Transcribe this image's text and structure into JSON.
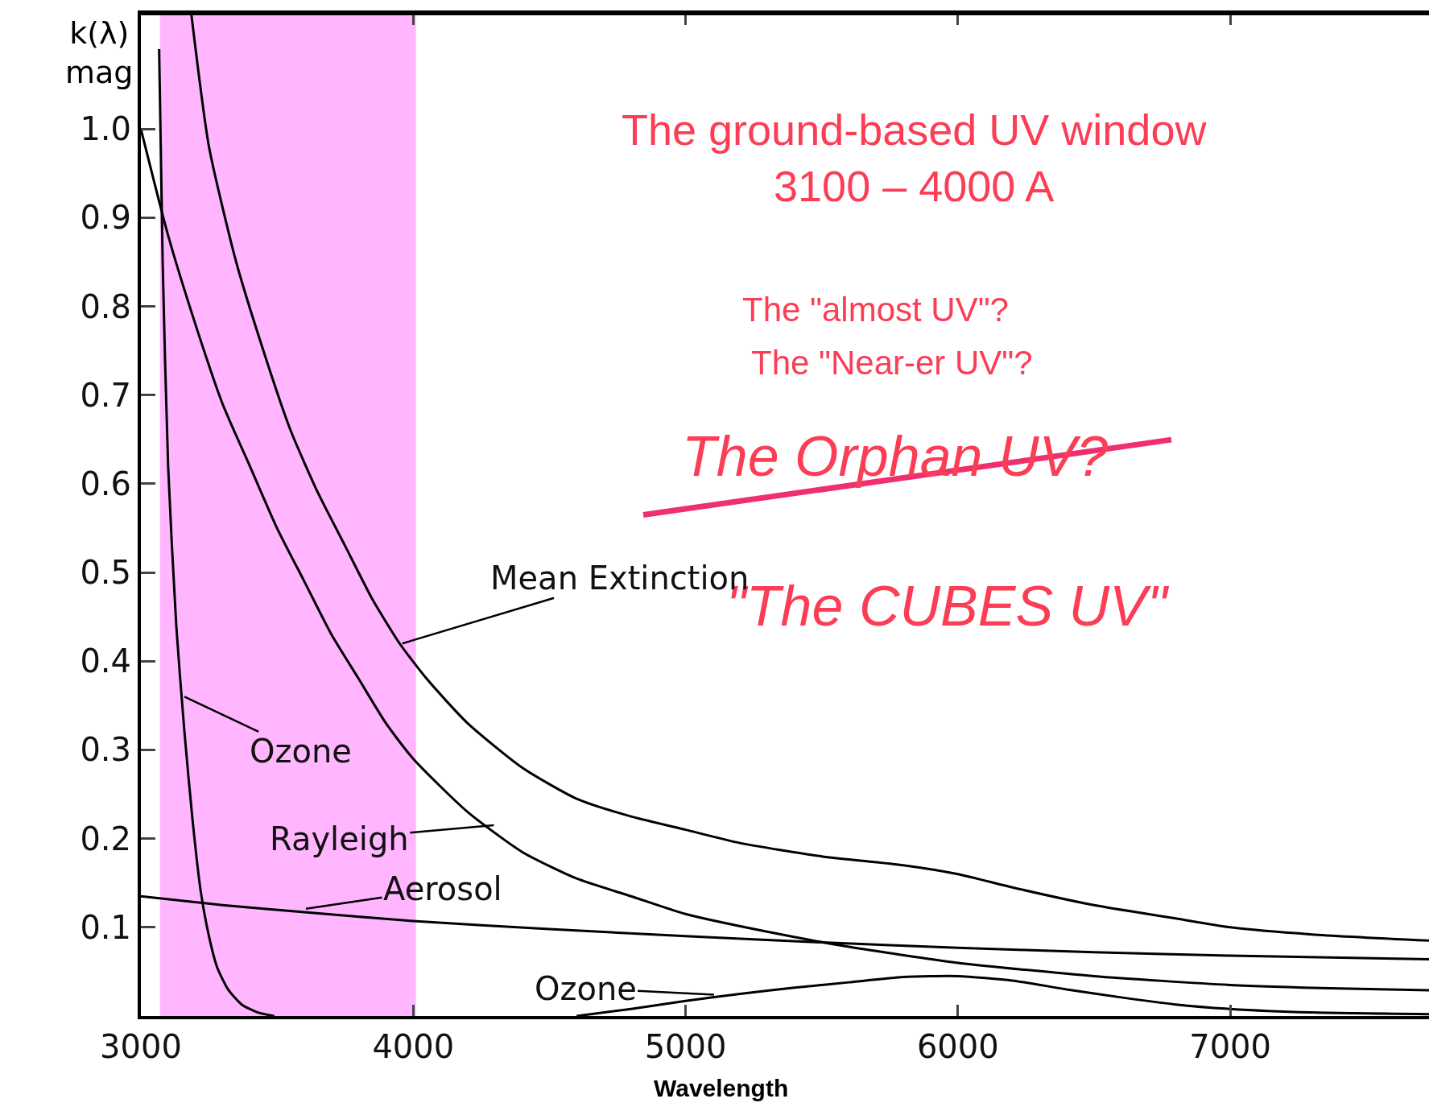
{
  "chart_data": {
    "type": "line",
    "xlabel": "Wavelength",
    "ylabel": "k(λ)\nmag",
    "xlim": [
      3000,
      7730
    ],
    "ylim": [
      0,
      1.13
    ],
    "xticks": [
      3000,
      4000,
      5000,
      6000,
      7000
    ],
    "yticks": [
      {
        "value": 0,
        "label": null
      },
      0.1,
      0.2,
      0.3,
      0.4,
      0.5,
      0.6,
      0.7,
      0.8,
      0.9,
      {
        "value": 1.0,
        "label": "1.0"
      }
    ],
    "grid": false,
    "marker": "none",
    "line_style": "solid",
    "series": [
      {
        "color": "#000000",
        "x": [
          3185,
          3250,
          3350,
          3450,
          3550,
          3650,
          3750,
          3850,
          3950,
          4050,
          4200,
          4400,
          4600,
          4800,
          5000,
          5200,
          5500,
          5800,
          6000,
          6200,
          6500,
          6800,
          7000,
          7300,
          7730
        ],
        "values": [
          1.13,
          0.98,
          0.85,
          0.75,
          0.66,
          0.59,
          0.53,
          0.47,
          0.42,
          0.38,
          0.33,
          0.28,
          0.245,
          0.225,
          0.21,
          0.195,
          0.18,
          0.17,
          0.16,
          0.145,
          0.125,
          0.11,
          0.1,
          0.092,
          0.085
        ]
      },
      {
        "color": "#000000",
        "x": [
          3000,
          3100,
          3200,
          3300,
          3400,
          3500,
          3600,
          3700,
          3800,
          3900,
          4000,
          4200,
          4400,
          4600,
          4800,
          5000,
          5300,
          5600,
          6000,
          6500,
          7000,
          7400,
          7730
        ],
        "values": [
          1.0,
          0.88,
          0.78,
          0.69,
          0.62,
          0.55,
          0.49,
          0.43,
          0.38,
          0.33,
          0.29,
          0.23,
          0.185,
          0.155,
          0.135,
          0.115,
          0.095,
          0.078,
          0.06,
          0.045,
          0.035,
          0.031,
          0.029
        ]
      },
      {
        "color": "#000000",
        "x": [
          3000,
          3300,
          3600,
          4000,
          4500,
          5000,
          5500,
          6000,
          6500,
          7000,
          7730
        ],
        "values": [
          0.135,
          0.125,
          0.117,
          0.107,
          0.098,
          0.09,
          0.083,
          0.077,
          0.072,
          0.068,
          0.064
        ]
      },
      {
        "color": "#000000",
        "x": [
          3067,
          3080,
          3100,
          3130,
          3160,
          3190,
          3220,
          3250,
          3280,
          3320,
          3370,
          3430,
          3490
        ],
        "values": [
          1.09,
          0.85,
          0.62,
          0.44,
          0.32,
          0.22,
          0.14,
          0.09,
          0.055,
          0.03,
          0.013,
          0.004,
          0.0
        ]
      },
      {
        "color": "#000000",
        "x": [
          4600,
          4800,
          5000,
          5200,
          5400,
          5600,
          5800,
          6000,
          6200,
          6400,
          6600,
          6800,
          7000,
          7300,
          7730
        ],
        "values": [
          0.0,
          0.008,
          0.017,
          0.025,
          0.032,
          0.038,
          0.044,
          0.045,
          0.04,
          0.03,
          0.021,
          0.013,
          0.008,
          0.004,
          0.002
        ]
      }
    ],
    "bands": [
      {
        "axis": "x",
        "from": 3070,
        "to": 4010,
        "color": "#ff22ff"
      }
    ],
    "annotations": [
      "The ground-based UV window\n3100 – 4000 A",
      "The \"almost UV\"?",
      "The \"Near-er UV\"?",
      "The Orphan UV?",
      "\"The CUBES UV\"",
      {
        "text": "Mean Extinction",
        "x": 3960,
        "y": 0.42
      },
      {
        "text": "Ozone",
        "x": 3160,
        "y": 0.36
      },
      {
        "text": "Rayleigh",
        "x": 4296,
        "y": 0.215
      },
      {
        "text": "Aerosol",
        "x": 3606,
        "y": 0.121
      },
      {
        "text": "Ozone",
        "x": 5105,
        "y": 0.024
      }
    ]
  }
}
